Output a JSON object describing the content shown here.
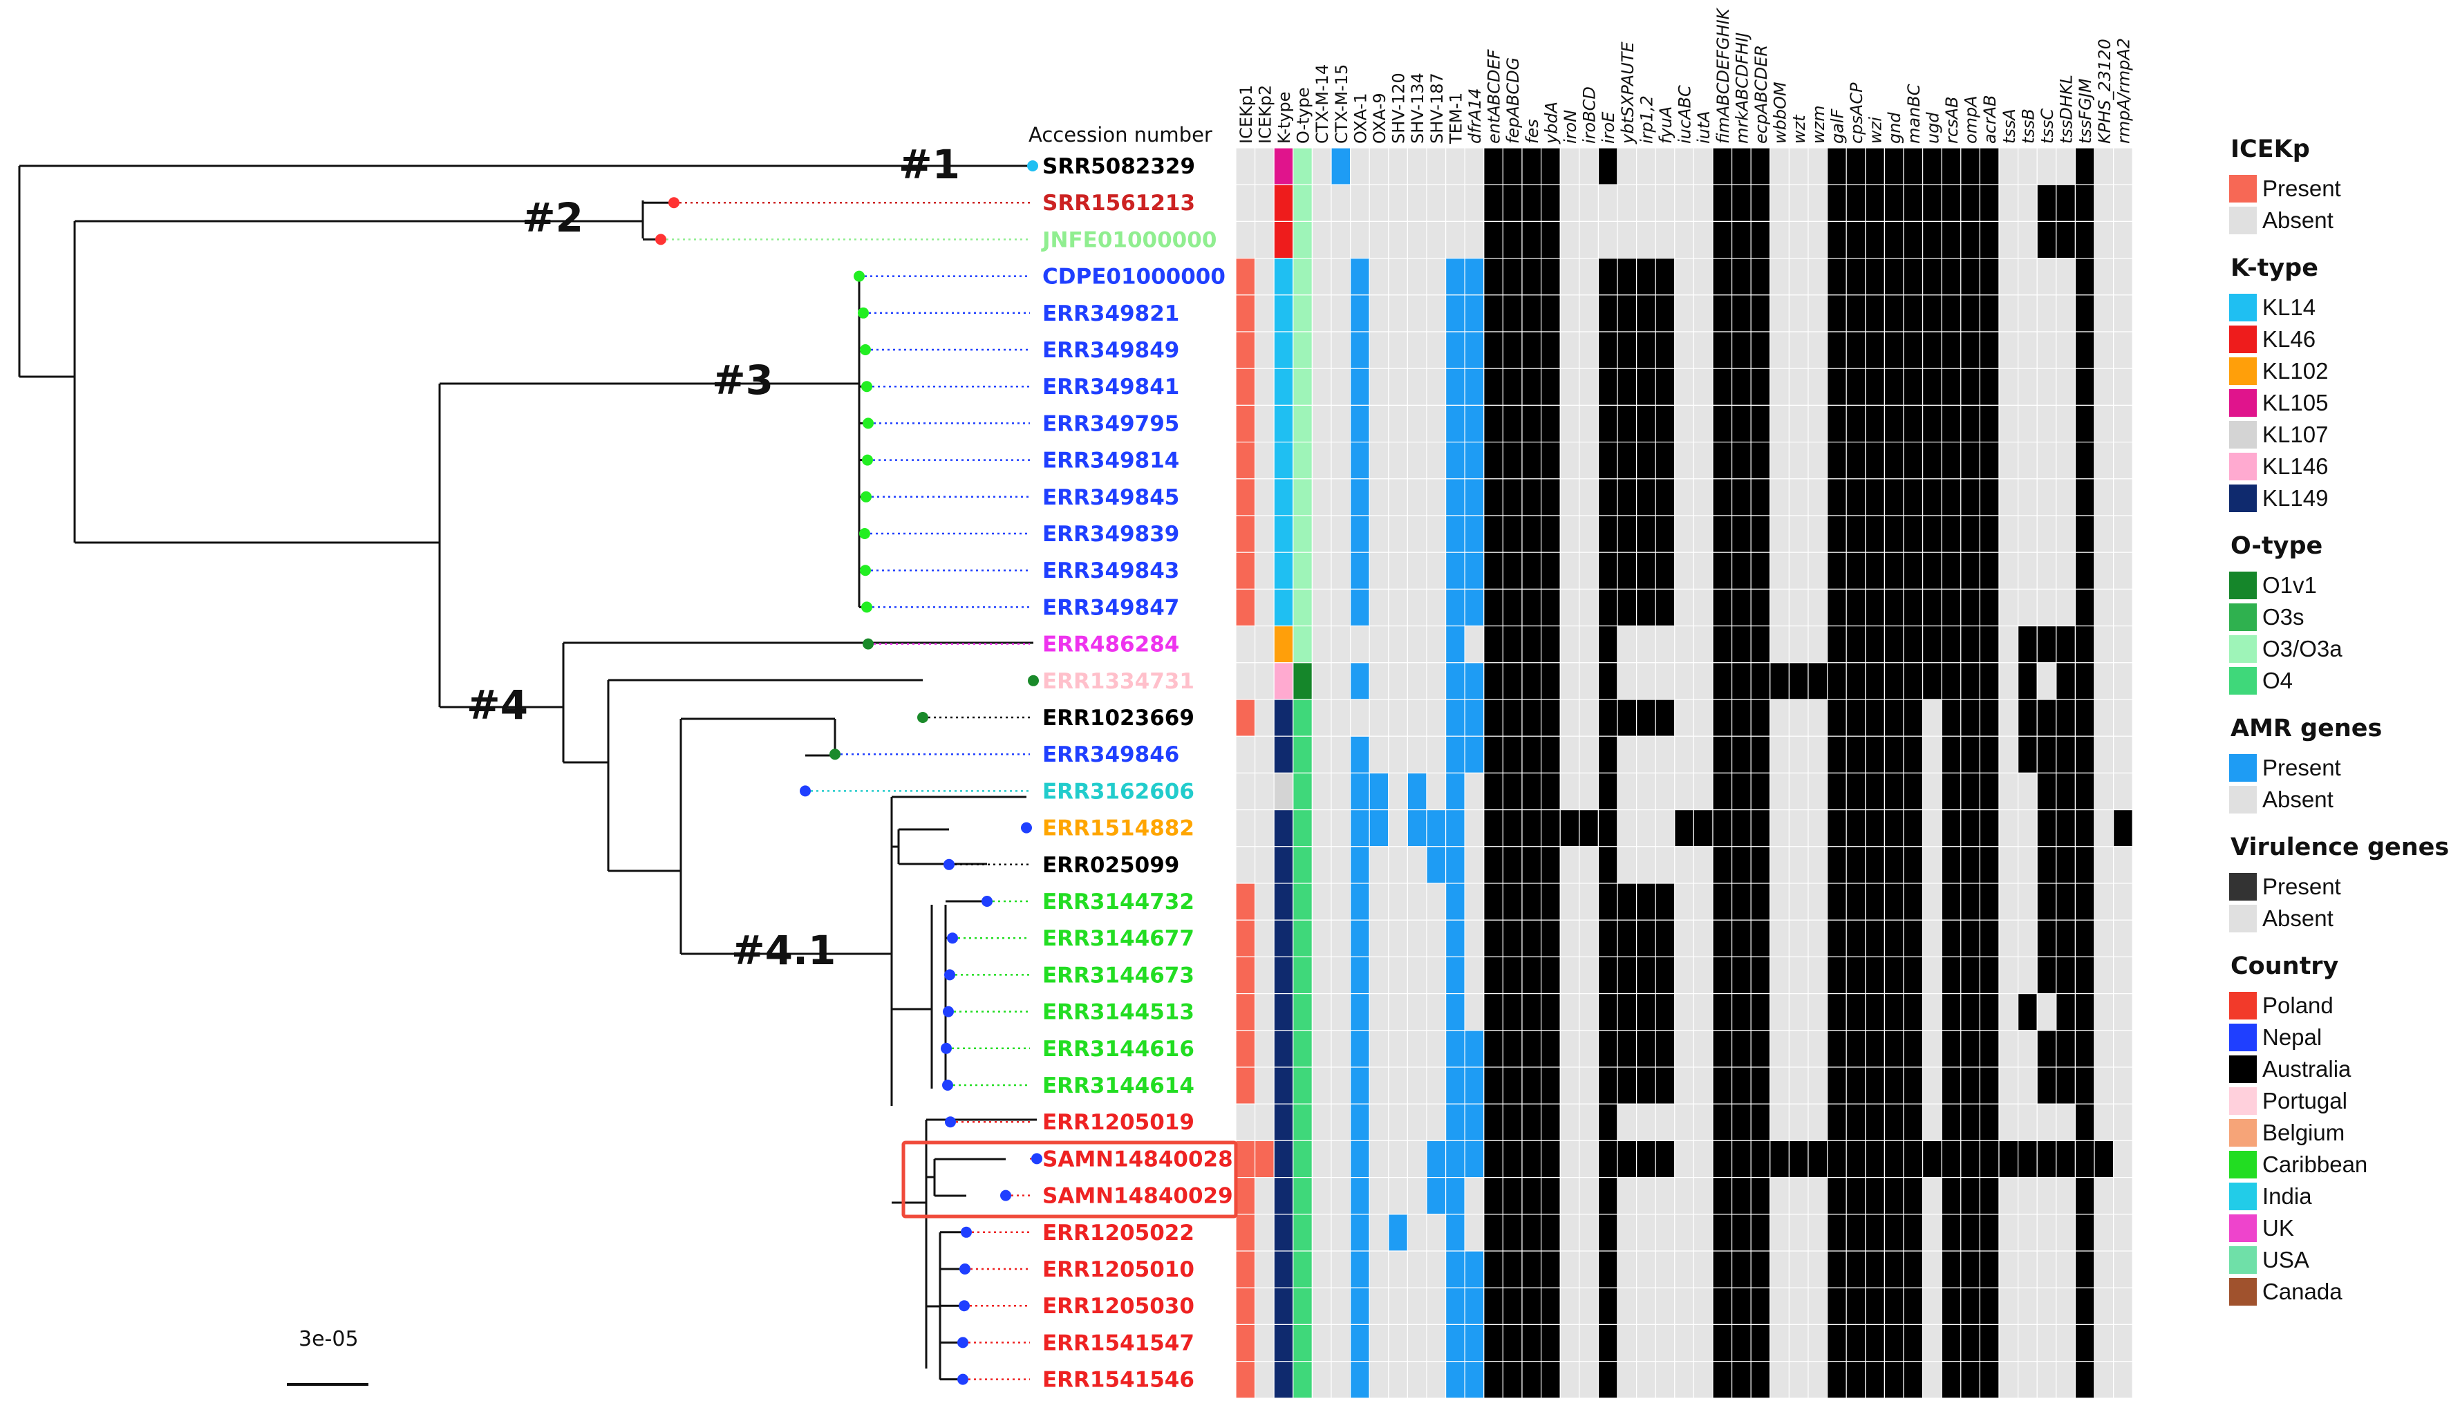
{
  "header": {
    "accession": "Accession number"
  },
  "scale_bar": {
    "label": "3e-05"
  },
  "clades": [
    "#1",
    "#2",
    "#3",
    "#4",
    "#4.1"
  ],
  "columns": [
    "ICEKp1",
    "ICEKp2",
    "K-type",
    "O-type",
    "CTX-M-14",
    "CTX-M-15",
    "OXA-1",
    "OXA-9",
    "SHV-120",
    "SHV-134",
    "SHV-187",
    "TEM-1",
    "dfrA14",
    "entABCDEF",
    "fepABCDG",
    "fes",
    "ybdA",
    "iroN",
    "iroBCD",
    "iroE",
    "ybtSXPAUTE",
    "irp1,2",
    "fyuA",
    "iucABC",
    "iutA",
    "fimABCDEFGHIK",
    "mrkABCDFHIJ",
    "ecpABCDER",
    "wbbOM",
    "wzt",
    "wzm",
    "galF",
    "cpsACP",
    "wzi",
    "gnd",
    "manBC",
    "ugd",
    "rcsAB",
    "ompA",
    "acrAB",
    "tssA",
    "tssB",
    "tssC",
    "tssDHKL",
    "tssFGJM",
    "KPHS_23120",
    "rmpA/rmpA2"
  ],
  "accessions": [
    {
      "id": "SRR5082329",
      "color": "#000000"
    },
    {
      "id": "SRR1561213",
      "color": "#cc2222"
    },
    {
      "id": "JNFE01000000",
      "color": "#90ee90"
    },
    {
      "id": "CDPE01000000",
      "color": "#1f3fff"
    },
    {
      "id": "ERR349821",
      "color": "#1f3fff"
    },
    {
      "id": "ERR349849",
      "color": "#1f3fff"
    },
    {
      "id": "ERR349841",
      "color": "#1f3fff"
    },
    {
      "id": "ERR349795",
      "color": "#1f3fff"
    },
    {
      "id": "ERR349814",
      "color": "#1f3fff"
    },
    {
      "id": "ERR349845",
      "color": "#1f3fff"
    },
    {
      "id": "ERR349839",
      "color": "#1f3fff"
    },
    {
      "id": "ERR349843",
      "color": "#1f3fff"
    },
    {
      "id": "ERR349847",
      "color": "#1f3fff"
    },
    {
      "id": "ERR486284",
      "color": "#ee33ee"
    },
    {
      "id": "ERR1334731",
      "color": "#ffc0cb"
    },
    {
      "id": "ERR1023669",
      "color": "#000000"
    },
    {
      "id": "ERR349846",
      "color": "#1f3fff"
    },
    {
      "id": "ERR3162606",
      "color": "#22cccc"
    },
    {
      "id": "ERR1514882",
      "color": "#ffa500"
    },
    {
      "id": "ERR025099",
      "color": "#000000"
    },
    {
      "id": "ERR3144732",
      "color": "#22dd22"
    },
    {
      "id": "ERR3144677",
      "color": "#22dd22"
    },
    {
      "id": "ERR3144673",
      "color": "#22dd22"
    },
    {
      "id": "ERR3144513",
      "color": "#22dd22"
    },
    {
      "id": "ERR3144616",
      "color": "#22dd22"
    },
    {
      "id": "ERR3144614",
      "color": "#22dd22"
    },
    {
      "id": "ERR1205019",
      "color": "#ee2222"
    },
    {
      "id": "SAMN14840028",
      "color": "#ee2222"
    },
    {
      "id": "SAMN14840029",
      "color": "#ee2222"
    },
    {
      "id": "ERR1205022",
      "color": "#ee2222"
    },
    {
      "id": "ERR1205010",
      "color": "#ee2222"
    },
    {
      "id": "ERR1205030",
      "color": "#ee2222"
    },
    {
      "id": "ERR1541547",
      "color": "#ee2222"
    },
    {
      "id": "ERR1541546",
      "color": "#ee2222"
    }
  ],
  "palette": {
    "absent": "#e4e4e4",
    "ice": "#f76855",
    "amr": "#1e9cf4",
    "vir": "#000000",
    "grid": "#ffffff"
  },
  "ktype_colors": {
    "KL14": "#1fbff2",
    "KL46": "#ee1c1c",
    "KL102": "#ff9f0a",
    "KL105": "#e0148c",
    "KL107": "#d4d4d4",
    "KL146": "#ffaad0",
    "KL149": "#0f2a6e"
  },
  "otype_colors": {
    "O1v1": "#15862a",
    "O3s": "#2fb14f",
    "O3/O3a": "#9ef4b8",
    "O4": "#3fd87a"
  },
  "heatmap": [
    "0,0,KL105,O3/O3a,0,1,0,0,0,0,0,0,0,1,1,1,1,0,0,1,0,0,0,0,0,1,1,1,0,0,0,1,1,1,1,1,1,1,1,1,0,0,0,0,1,0,0",
    "0,0,KL46,O3/O3a,0,0,0,0,0,0,0,0,0,1,1,1,1,0,0,0,0,0,0,0,0,1,1,1,0,0,0,1,1,1,1,1,1,1,1,1,0,0,1,1,1,0,0",
    "0,0,KL46,O3/O3a,0,0,0,0,0,0,0,0,0,1,1,1,1,0,0,0,0,0,0,0,0,1,1,1,0,0,0,1,1,1,1,1,1,1,1,1,0,0,1,1,1,0,0",
    "1,0,KL14,O3/O3a,0,0,1,0,0,0,0,1,1,1,1,1,1,0,0,1,1,1,1,0,0,1,1,1,0,0,0,1,1,1,1,1,1,1,1,1,0,0,0,0,1,0,0",
    "1,0,KL14,O3/O3a,0,0,1,0,0,0,0,1,1,1,1,1,1,0,0,1,1,1,1,0,0,1,1,1,0,0,0,1,1,1,1,1,1,1,1,1,0,0,0,0,1,0,0",
    "1,0,KL14,O3/O3a,0,0,1,0,0,0,0,1,1,1,1,1,1,0,0,1,1,1,1,0,0,1,1,1,0,0,0,1,1,1,1,1,1,1,1,1,0,0,0,0,1,0,0",
    "1,0,KL14,O3/O3a,0,0,1,0,0,0,0,1,1,1,1,1,1,0,0,1,1,1,1,0,0,1,1,1,0,0,0,1,1,1,1,1,1,1,1,1,0,0,0,0,1,0,0",
    "1,0,KL14,O3/O3a,0,0,1,0,0,0,0,1,1,1,1,1,1,0,0,1,1,1,1,0,0,1,1,1,0,0,0,1,1,1,1,1,1,1,1,1,0,0,0,0,1,0,0",
    "1,0,KL14,O3/O3a,0,0,1,0,0,0,0,1,1,1,1,1,1,0,0,1,1,1,1,0,0,1,1,1,0,0,0,1,1,1,1,1,1,1,1,1,0,0,0,0,1,0,0",
    "1,0,KL14,O3/O3a,0,0,1,0,0,0,0,1,1,1,1,1,1,0,0,1,1,1,1,0,0,1,1,1,0,0,0,1,1,1,1,1,1,1,1,1,0,0,0,0,1,0,0",
    "1,0,KL14,O3/O3a,0,0,1,0,0,0,0,1,1,1,1,1,1,0,0,1,1,1,1,0,0,1,1,1,0,0,0,1,1,1,1,1,1,1,1,1,0,0,0,0,1,0,0",
    "1,0,KL14,O3/O3a,0,0,1,0,0,0,0,1,1,1,1,1,1,0,0,1,1,1,1,0,0,1,1,1,0,0,0,1,1,1,1,1,1,1,1,1,0,0,0,0,1,0,0",
    "1,0,KL14,O3/O3a,0,0,1,0,0,0,0,1,1,1,1,1,1,0,0,1,1,1,1,0,0,1,1,1,0,0,0,1,1,1,1,1,1,1,1,1,0,0,0,0,1,0,0",
    "0,0,KL102,O3/O3a,0,0,0,0,0,0,0,1,0,1,1,1,1,0,0,1,0,0,0,0,0,1,1,1,0,0,0,1,1,1,1,1,1,1,1,1,0,1,1,1,1,0,0",
    "0,0,KL146,O1v1,0,0,1,0,0,0,0,1,1,1,1,1,1,0,0,1,0,0,0,0,0,1,1,1,1,1,1,1,1,1,1,1,1,1,1,1,0,1,0,1,1,0,0",
    "1,0,KL149,O4,0,0,0,0,0,0,0,1,1,1,1,1,1,0,0,1,1,1,1,0,0,1,1,1,0,0,0,1,1,1,1,1,0,1,1,1,0,1,1,1,1,0,0",
    "0,0,KL149,O4,0,0,1,0,0,0,0,1,1,1,1,1,1,0,0,1,0,0,0,0,0,1,1,1,0,0,0,1,1,1,1,1,0,1,1,1,0,1,1,1,1,0,0",
    "0,0,KL107,O4,0,0,1,1,0,1,0,1,0,1,1,1,1,0,0,1,0,0,0,0,0,1,1,1,0,0,0,1,1,1,1,1,0,1,1,1,0,0,1,1,1,0,0",
    "0,0,KL149,O4,0,0,1,1,0,1,1,1,0,1,1,1,1,1,1,1,0,0,0,1,1,1,1,1,0,0,0,1,1,1,1,1,0,1,1,1,0,0,1,1,1,0,1",
    "0,0,KL149,O4,0,0,1,0,0,0,1,1,0,1,1,1,1,0,0,1,0,0,0,0,0,1,1,1,0,0,0,1,1,1,1,1,0,1,1,1,0,0,1,1,1,0,0",
    "1,0,KL149,O4,0,0,1,0,0,0,0,1,0,1,1,1,1,0,0,1,1,1,1,0,0,1,1,1,0,0,0,1,1,1,1,1,0,1,1,1,0,0,1,1,1,0,0",
    "1,0,KL149,O4,0,0,1,0,0,0,0,1,0,1,1,1,1,0,0,1,1,1,1,0,0,1,1,1,0,0,0,1,1,1,1,1,0,1,1,1,0,0,1,1,1,0,0",
    "1,0,KL149,O4,0,0,1,0,0,0,0,1,0,1,1,1,1,0,0,1,1,1,1,0,0,1,1,1,0,0,0,1,1,1,1,1,0,1,1,1,0,0,1,1,1,0,0",
    "1,0,KL149,O4,0,0,1,0,0,0,0,1,0,1,1,1,1,0,0,1,1,1,1,0,0,1,1,1,0,0,0,1,1,1,1,1,0,1,1,1,0,1,0,1,1,0,0",
    "1,0,KL149,O4,0,0,1,0,0,0,0,1,1,1,1,1,1,0,0,1,1,1,1,0,0,1,1,1,0,0,0,1,1,1,1,1,0,1,1,1,0,0,1,1,1,0,0",
    "1,0,KL149,O4,0,0,1,0,0,0,0,1,1,1,1,1,1,0,0,1,1,1,1,0,0,1,1,1,0,0,0,1,1,1,1,1,0,1,1,1,0,0,1,1,1,0,0",
    "0,0,KL149,O4,0,0,1,0,0,0,0,1,1,1,1,1,1,0,0,1,0,0,0,0,0,1,1,1,0,0,0,1,1,1,1,1,0,1,1,1,0,0,0,0,1,0,0",
    "1,1,KL149,O4,0,0,1,0,0,0,1,1,1,1,1,1,1,0,0,1,1,1,1,0,0,1,1,1,1,1,1,1,1,1,1,1,1,1,1,1,1,1,1,1,1,1,0",
    "1,0,KL149,O4,0,0,1,0,0,0,1,1,0,1,1,1,1,0,0,1,0,0,0,0,0,1,1,1,0,0,0,1,1,1,1,1,0,1,1,1,0,0,0,0,1,0,0",
    "1,0,KL149,O4,0,0,1,0,1,0,0,1,0,1,1,1,1,0,0,1,0,0,0,0,0,1,1,1,0,0,0,1,1,1,1,1,0,1,1,1,0,0,0,0,1,0,0",
    "1,0,KL149,O4,0,0,1,0,0,0,0,1,1,1,1,1,1,0,0,1,0,0,0,0,0,1,1,1,0,0,0,1,1,1,1,1,0,1,1,1,0,0,0,0,1,0,0",
    "1,0,KL149,O4,0,0,1,0,0,0,0,1,1,1,1,1,1,0,0,1,0,0,0,0,0,1,1,1,0,0,0,1,1,1,1,1,0,1,1,1,0,0,0,0,1,0,0",
    "1,0,KL149,O4,0,0,1,0,0,0,0,1,1,1,1,1,1,0,0,1,0,0,0,0,0,1,1,1,0,0,0,1,1,1,1,1,0,1,1,1,0,0,0,0,1,0,0",
    "1,0,KL149,O4,0,0,1,0,0,0,0,1,1,1,1,1,1,0,0,1,0,0,0,0,0,1,1,1,0,0,0,1,1,1,1,1,0,1,1,1,0,0,0,0,1,0,0"
  ],
  "legend": [
    {
      "title": "ICEKp",
      "items": [
        {
          "label": "Present",
          "color": "#f76855"
        },
        {
          "label": "Absent",
          "color": "#e0e0e0"
        }
      ]
    },
    {
      "title": "K-type",
      "items": [
        {
          "label": "KL14",
          "color": "#1fbff2"
        },
        {
          "label": "KL46",
          "color": "#ee1c1c"
        },
        {
          "label": "KL102",
          "color": "#ff9f0a"
        },
        {
          "label": "KL105",
          "color": "#e0148c"
        },
        {
          "label": "KL107",
          "color": "#d4d4d4"
        },
        {
          "label": "KL146",
          "color": "#ffaad0"
        },
        {
          "label": "KL149",
          "color": "#0f2a6e"
        }
      ]
    },
    {
      "title": "O-type",
      "items": [
        {
          "label": "O1v1",
          "color": "#15862a"
        },
        {
          "label": "O3s",
          "color": "#2fb14f"
        },
        {
          "label": "O3/O3a",
          "color": "#9ef4b8"
        },
        {
          "label": "O4",
          "color": "#3fd87a"
        }
      ]
    },
    {
      "title": "AMR genes",
      "items": [
        {
          "label": "Present",
          "color": "#1e9cf4"
        },
        {
          "label": "Absent",
          "color": "#e0e0e0"
        }
      ]
    },
    {
      "title": "Virulence genes",
      "items": [
        {
          "label": "Present",
          "color": "#333333"
        },
        {
          "label": "Absent",
          "color": "#e0e0e0"
        }
      ]
    },
    {
      "title": "Country",
      "items": [
        {
          "label": "Poland",
          "color": "#f23a2a"
        },
        {
          "label": "Nepal",
          "color": "#1f3fff"
        },
        {
          "label": "Australia",
          "color": "#000000"
        },
        {
          "label": "Portugal",
          "color": "#ffd0dc"
        },
        {
          "label": "Belgium",
          "color": "#f6a478"
        },
        {
          "label": "Caribbean",
          "color": "#22dd22"
        },
        {
          "label": "India",
          "color": "#22cce8"
        },
        {
          "label": "UK",
          "color": "#ee44cc"
        },
        {
          "label": "USA",
          "color": "#6fe0a8"
        },
        {
          "label": "Canada",
          "color": "#a0522d"
        }
      ]
    }
  ]
}
